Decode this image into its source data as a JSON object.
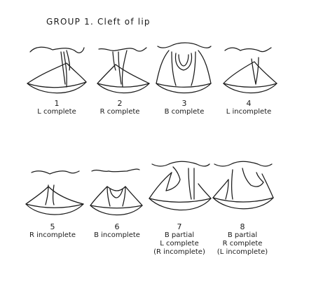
{
  "figure": {
    "title": "GROUP 1.  Cleft of lip",
    "items": [
      {
        "number": "1",
        "lines": [
          "L complete"
        ]
      },
      {
        "number": "2",
        "lines": [
          "R complete"
        ]
      },
      {
        "number": "3",
        "lines": [
          "B complete"
        ]
      },
      {
        "number": "4",
        "lines": [
          "L incomplete"
        ]
      },
      {
        "number": "5",
        "lines": [
          "R incomplete"
        ]
      },
      {
        "number": "6",
        "lines": [
          "B incomplete"
        ]
      },
      {
        "number": "7",
        "lines": [
          "B partial",
          "L complete",
          "(R incomplete)"
        ]
      },
      {
        "number": "8",
        "lines": [
          "B partial",
          "R complete",
          "(L incomplete)"
        ]
      }
    ]
  }
}
